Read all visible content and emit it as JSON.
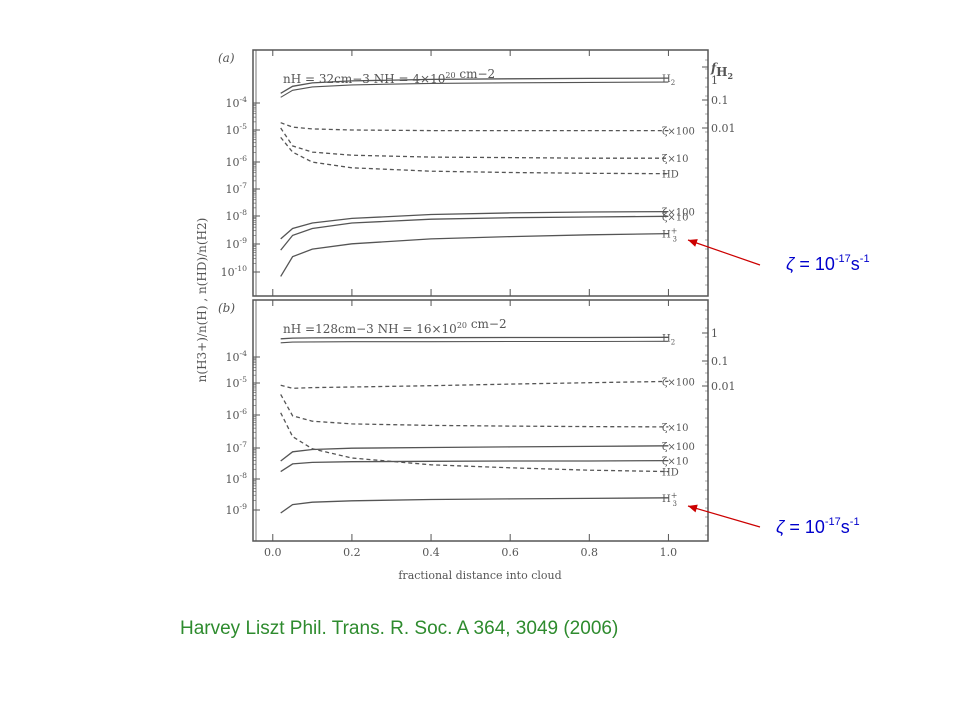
{
  "slide": {
    "citation": "Harvey Liszt  Phil. Trans. R. Soc. A 364, 3049 (2006)",
    "annotations": [
      {
        "zeta": "ζ",
        "mid": " = 10",
        "exp": "-17",
        "unit": "s",
        "unitexp": "-1",
        "points_to": "H3+ curve, panel (a)",
        "color": "#0000cc",
        "arrow_color": "#cc0000"
      },
      {
        "zeta": "ζ",
        "mid": " = 10",
        "exp": "-17",
        "unit": "s",
        "unitexp": "-1",
        "points_to": "H3+ curve, panel (b)",
        "color": "#0000cc",
        "arrow_color": "#cc0000"
      }
    ]
  },
  "chart_data": {
    "type": "line",
    "xlabel": "fractional distance into cloud",
    "x_ticks": [
      "0.0",
      "0.2",
      "0.4",
      "0.6",
      "0.8",
      "1.0"
    ],
    "xlim": [
      -0.05,
      1.1
    ],
    "ylabel": "n(H3+)/n(H) , n(HD)/n(H2)",
    "y_scale": "log",
    "right_axis_label": "fH2",
    "panels": [
      {
        "label": "(a)",
        "subtitle": "nH = 32cm−3 NH = 4×10^20 cm−2",
        "left_ticks": [
          "10-4",
          "10-5",
          "10-6",
          "10-7",
          "10-8",
          "10-9",
          "10-10"
        ],
        "right_ticks": [
          "1",
          "0.1",
          "0.01"
        ],
        "ylim": [
          5e-11,
          0.001
        ],
        "series": [
          {
            "name": "H2",
            "style": "solid-double",
            "x": [
              0.02,
              0.05,
              0.1,
              0.2,
              0.4,
              0.6,
              0.8,
              1.0
            ],
            "values": [
              0.16,
              0.26,
              0.33,
              0.38,
              0.42,
              0.44,
              0.45,
              0.46
            ]
          },
          {
            "name": "ζ×100",
            "style": "dashed",
            "x": [
              0.02,
              0.05,
              0.1,
              0.2,
              0.4,
              0.6,
              0.8,
              1.0
            ],
            "values": [
              2e-05,
              1.4e-05,
              1.2e-05,
              1.1e-05,
              1.05e-05,
              1.05e-05,
              1.05e-05,
              1.05e-05
            ]
          },
          {
            "name": "ζ×10",
            "style": "dashed",
            "x": [
              0.02,
              0.05,
              0.1,
              0.2,
              0.4,
              0.6,
              0.8,
              1.0
            ],
            "values": [
              1.3e-05,
              3e-06,
              1.8e-06,
              1.4e-06,
              1.2e-06,
              1.15e-06,
              1.1e-06,
              1.1e-06
            ]
          },
          {
            "name": "HD",
            "style": "dashed",
            "x": [
              0.02,
              0.05,
              0.1,
              0.2,
              0.4,
              0.6,
              0.8,
              1.0
            ],
            "values": [
              6e-06,
              1.8e-06,
              8e-07,
              5e-07,
              3.8e-07,
              3.4e-07,
              3.2e-07,
              3.1e-07
            ]
          },
          {
            "name": "ζ×100",
            "style": "solid",
            "x": [
              0.02,
              0.05,
              0.1,
              0.2,
              0.4,
              0.6,
              0.8,
              1.0
            ],
            "values": [
              1.5e-09,
              3.5e-09,
              5.5e-09,
              8e-09,
              1.1e-08,
              1.25e-08,
              1.35e-08,
              1.4e-08
            ]
          },
          {
            "name": "ζ×10",
            "style": "solid",
            "x": [
              0.02,
              0.05,
              0.1,
              0.2,
              0.4,
              0.6,
              0.8,
              1.0
            ],
            "values": [
              6e-10,
              2e-09,
              3.5e-09,
              5.5e-09,
              7.5e-09,
              8.5e-09,
              9e-09,
              9.5e-09
            ]
          },
          {
            "name": "H3+",
            "style": "solid",
            "x": [
              0.02,
              0.05,
              0.1,
              0.2,
              0.4,
              0.6,
              0.8,
              1.0
            ],
            "values": [
              7e-11,
              3.5e-10,
              6.5e-10,
              1e-09,
              1.5e-09,
              1.8e-09,
              2.1e-09,
              2.3e-09
            ]
          }
        ]
      },
      {
        "label": "(b)",
        "subtitle": "nH =128cm−3 NH = 16×10^20 cm−2",
        "left_ticks": [
          "10-4",
          "10-5",
          "10-6",
          "10-7",
          "10-8",
          "10-9"
        ],
        "right_ticks": [
          "1",
          "0.1",
          "0.01"
        ],
        "ylim": [
          2e-10,
          0.0011
        ],
        "series": [
          {
            "name": "H2",
            "style": "solid-double",
            "x": [
              0.02,
              0.05,
              0.1,
              0.2,
              0.4,
              0.6,
              0.8,
              1.0
            ],
            "values": [
              0.62,
              0.66,
              0.67,
              0.68,
              0.68,
              0.69,
              0.69,
              0.7
            ]
          },
          {
            "name": "ζ×100",
            "style": "dashed",
            "x": [
              0.02,
              0.05,
              0.1,
              0.2,
              0.4,
              0.6,
              0.8,
              1.0
            ],
            "values": [
              1.2e-05,
              9.5e-06,
              1e-05,
              1.05e-05,
              1.15e-05,
              1.3e-05,
              1.45e-05,
              1.6e-05
            ]
          },
          {
            "name": "ζ×10",
            "style": "dashed",
            "x": [
              0.02,
              0.05,
              0.1,
              0.2,
              0.4,
              0.6,
              0.8,
              1.0
            ],
            "values": [
              6e-06,
              1.2e-06,
              8e-07,
              6.5e-07,
              5.8e-07,
              5.5e-07,
              5.3e-07,
              5.2e-07
            ]
          },
          {
            "name": "HD",
            "style": "dashed",
            "x": [
              0.02,
              0.05,
              0.1,
              0.2,
              0.4,
              0.6,
              0.8,
              1.0
            ],
            "values": [
              1.5e-06,
              2.5e-07,
              1e-07,
              5e-08,
              3e-08,
              2.4e-08,
              2e-08,
              1.8e-08
            ]
          },
          {
            "name": "ζ×100",
            "style": "solid",
            "x": [
              0.02,
              0.05,
              0.1,
              0.2,
              0.4,
              0.6,
              0.8,
              1.0
            ],
            "values": [
              4e-08,
              8e-08,
              9.5e-08,
              1.05e-07,
              1.1e-07,
              1.15e-07,
              1.2e-07,
              1.25e-07
            ]
          },
          {
            "name": "ζ×10",
            "style": "solid",
            "x": [
              0.02,
              0.05,
              0.1,
              0.2,
              0.4,
              0.6,
              0.8,
              1.0
            ],
            "values": [
              1.8e-08,
              3.2e-08,
              3.6e-08,
              3.8e-08,
              3.9e-08,
              4e-08,
              4e-08,
              4.1e-08
            ]
          },
          {
            "name": "H3+",
            "style": "solid",
            "x": [
              0.02,
              0.05,
              0.1,
              0.2,
              0.4,
              0.6,
              0.8,
              1.0
            ],
            "values": [
              8e-10,
              1.5e-09,
              1.8e-09,
              2e-09,
              2.2e-09,
              2.3e-09,
              2.4e-09,
              2.5e-09
            ]
          }
        ]
      }
    ]
  }
}
